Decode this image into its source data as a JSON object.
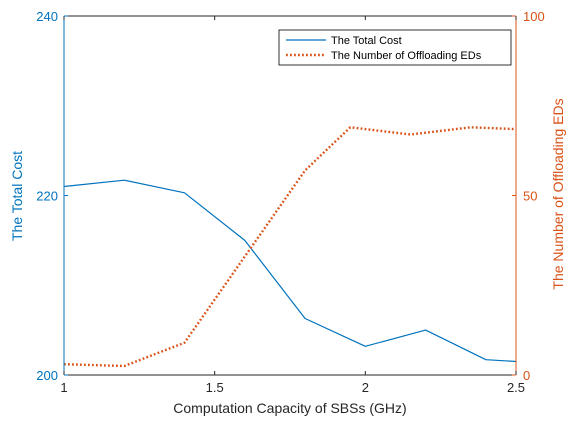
{
  "chart_data": {
    "type": "line",
    "xlabel": "Computation Capacity of SBSs (GHz)",
    "ylabel_left": "The Total Cost",
    "ylabel_right": "The Number of Offloading EDs",
    "xlim": [
      1,
      2.5
    ],
    "ylim_left": [
      200,
      240
    ],
    "ylim_right": [
      0,
      100
    ],
    "x_ticks": [
      "1",
      "1.5",
      "2",
      "2.5"
    ],
    "y_left_ticks": [
      "200",
      "220",
      "240"
    ],
    "y_right_ticks": [
      "0",
      "50",
      "100"
    ],
    "legend_position": "top-right",
    "colors": {
      "left": "#0072BD",
      "right": "#D95319"
    },
    "series": [
      {
        "name": "The Total Cost",
        "axis": "left",
        "style": "solid",
        "color": "#0072BD",
        "x": [
          1.0,
          1.2,
          1.4,
          1.6,
          1.8,
          2.0,
          2.2,
          2.4,
          2.5
        ],
        "values": [
          221.0,
          221.7,
          220.3,
          215.0,
          206.3,
          203.2,
          205.0,
          201.7,
          201.5
        ]
      },
      {
        "name": "The Number of Offloading EDs",
        "axis": "right",
        "style": "dotted",
        "color": "#D95319",
        "x": [
          1.0,
          1.2,
          1.4,
          1.6,
          1.8,
          1.95,
          2.15,
          2.35,
          2.5
        ],
        "values": [
          3,
          2.5,
          9,
          33,
          57,
          69,
          67,
          69,
          68.5
        ]
      }
    ]
  }
}
